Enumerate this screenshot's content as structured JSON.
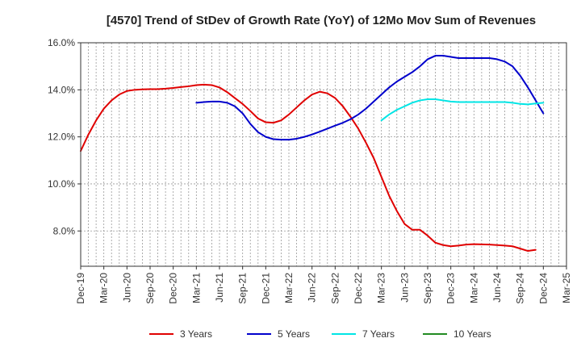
{
  "chart_data": {
    "type": "line",
    "title": "[4570]  Trend of StDev of Growth Rate (YoY) of 12Mo Mov Sum of Revenues",
    "xlabel": "",
    "ylabel": "",
    "grid": true,
    "y_ticks": [
      8.0,
      10.0,
      12.0,
      14.0,
      16.0
    ],
    "y_tick_labels": [
      "8.0%",
      "10.0%",
      "12.0%",
      "14.0%",
      "16.0%"
    ],
    "ylim": [
      6.5,
      16.0
    ],
    "x_tick_labels": [
      "Dec-19",
      "Mar-20",
      "Jun-20",
      "Sep-20",
      "Dec-20",
      "Mar-21",
      "Jun-21",
      "Sep-21",
      "Dec-21",
      "Mar-22",
      "Jun-22",
      "Sep-22",
      "Dec-22",
      "Mar-23",
      "Jun-23",
      "Sep-23",
      "Dec-23",
      "Mar-24",
      "Jun-24",
      "Sep-24",
      "Dec-24",
      "Mar-25"
    ],
    "legend_position": "bottom",
    "series": [
      {
        "name": "3 Years",
        "color": "#e00000",
        "start_month": 0,
        "values": [
          11.4,
          12.1,
          12.7,
          13.2,
          13.55,
          13.8,
          13.95,
          14.0,
          14.02,
          14.03,
          14.03,
          14.05,
          14.08,
          14.12,
          14.15,
          14.2,
          14.22,
          14.2,
          14.1,
          13.9,
          13.65,
          13.4,
          13.1,
          12.78,
          12.62,
          12.6,
          12.7,
          12.95,
          13.25,
          13.55,
          13.8,
          13.92,
          13.85,
          13.65,
          13.3,
          12.85,
          12.35,
          11.75,
          11.1,
          10.3,
          9.5,
          8.85,
          8.3,
          8.05,
          8.05,
          7.8,
          7.5,
          7.4,
          7.35,
          7.38,
          7.42,
          7.44,
          7.43,
          7.42,
          7.4,
          7.38,
          7.35,
          7.25,
          7.15,
          7.2
        ]
      },
      {
        "name": "5 Years",
        "color": "#0000cc",
        "start_month": 15,
        "values": [
          13.45,
          13.48,
          13.5,
          13.5,
          13.45,
          13.3,
          13.0,
          12.55,
          12.2,
          12.0,
          11.9,
          11.88,
          11.88,
          11.92,
          12.0,
          12.1,
          12.22,
          12.35,
          12.48,
          12.6,
          12.75,
          12.95,
          13.2,
          13.5,
          13.8,
          14.1,
          14.35,
          14.55,
          14.75,
          15.0,
          15.3,
          15.45,
          15.45,
          15.4,
          15.35,
          15.35,
          15.35,
          15.35,
          15.35,
          15.3,
          15.2,
          15.0,
          14.6,
          14.1,
          13.55,
          13.0
        ]
      },
      {
        "name": "7 Years",
        "color": "#00e5e5",
        "start_month": 39,
        "values": [
          12.7,
          12.95,
          13.15,
          13.3,
          13.45,
          13.55,
          13.6,
          13.6,
          13.55,
          13.5,
          13.48,
          13.48,
          13.48,
          13.48,
          13.48,
          13.48,
          13.48,
          13.45,
          13.4,
          13.38,
          13.42,
          13.45
        ]
      },
      {
        "name": "10 Years",
        "color": "#228b22",
        "start_month": 0,
        "values": []
      }
    ]
  }
}
